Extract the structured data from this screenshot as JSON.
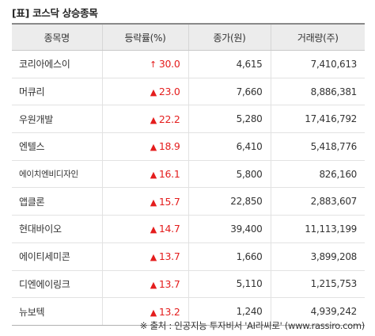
{
  "title": "[표] 코스닥 상승종목",
  "headers": [
    "종목명",
    "등락률(%)",
    "종가(원)",
    "거래량(주)"
  ],
  "colors": {
    "up": "#e41d1d",
    "header_bg": "#ececec"
  },
  "rows": [
    {
      "name": "코리아에스이",
      "arrow": "↑",
      "arrow_icon": "upper-limit-arrow-icon",
      "rate": "30.0",
      "price": "4,615",
      "volume": "7,410,613"
    },
    {
      "name": "머큐리",
      "arrow": "▲",
      "arrow_icon": "up-triangle-icon",
      "rate": "23.0",
      "price": "7,660",
      "volume": "8,886,381"
    },
    {
      "name": "우원개발",
      "arrow": "▲",
      "arrow_icon": "up-triangle-icon",
      "rate": "22.2",
      "price": "5,280",
      "volume": "17,416,792"
    },
    {
      "name": "엔텔스",
      "arrow": "▲",
      "arrow_icon": "up-triangle-icon",
      "rate": "18.9",
      "price": "6,410",
      "volume": "5,418,776"
    },
    {
      "name": "에이치엔비디자인",
      "arrow": "▲",
      "arrow_icon": "up-triangle-icon",
      "rate": "16.1",
      "price": "5,800",
      "volume": "826,160"
    },
    {
      "name": "앱클론",
      "arrow": "▲",
      "arrow_icon": "up-triangle-icon",
      "rate": "15.7",
      "price": "22,850",
      "volume": "2,883,607"
    },
    {
      "name": "현대바이오",
      "arrow": "▲",
      "arrow_icon": "up-triangle-icon",
      "rate": "14.7",
      "price": "39,400",
      "volume": "11,113,199"
    },
    {
      "name": "에이티세미콘",
      "arrow": "▲",
      "arrow_icon": "up-triangle-icon",
      "rate": "13.7",
      "price": "1,660",
      "volume": "3,899,208"
    },
    {
      "name": "디엔에이링크",
      "arrow": "▲",
      "arrow_icon": "up-triangle-icon",
      "rate": "13.7",
      "price": "5,110",
      "volume": "1,215,753"
    },
    {
      "name": "뉴보텍",
      "arrow": "▲",
      "arrow_icon": "up-triangle-icon",
      "rate": "13.2",
      "price": "1,240",
      "volume": "4,939,242"
    }
  ],
  "source": "※ 출처 : 인공지능 투자비서 'AI라씨로' (www.rassiro.com)"
}
